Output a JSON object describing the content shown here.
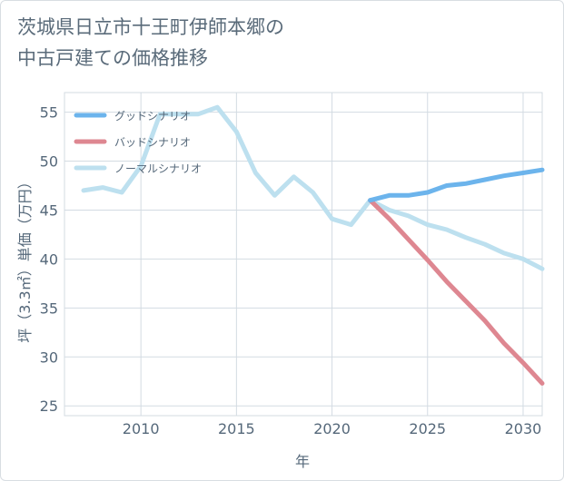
{
  "title_line1": "茨城県日立市十王町伊師本郷の",
  "title_line2": "中古戸建ての価格推移",
  "chart_data": {
    "type": "line",
    "title": "茨城県日立市十王町伊師本郷の中古戸建ての価格推移",
    "xlabel": "年",
    "ylabel": "坪（3.3㎡）単価（万円）",
    "xlim": [
      2006,
      2031
    ],
    "ylim": [
      24,
      57
    ],
    "xticks": [
      2010,
      2015,
      2020,
      2025,
      2030
    ],
    "yticks": [
      25,
      30,
      35,
      40,
      45,
      50,
      55
    ],
    "legend_position": "top-left",
    "series": [
      {
        "name": "グッドシナリオ",
        "color": "#6cb4ec",
        "x": [
          2022,
          2023,
          2024,
          2025,
          2026,
          2027,
          2028,
          2029,
          2030,
          2031
        ],
        "values": [
          46.0,
          46.5,
          46.5,
          46.8,
          47.5,
          47.7,
          48.1,
          48.5,
          48.8,
          49.1
        ]
      },
      {
        "name": "バッドシナリオ",
        "color": "#de8791",
        "x": [
          2022,
          2023,
          2024,
          2025,
          2026,
          2027,
          2028,
          2029,
          2030,
          2031
        ],
        "values": [
          46.0,
          44.1,
          42.0,
          39.9,
          37.7,
          35.7,
          33.7,
          31.4,
          29.4,
          27.3
        ]
      },
      {
        "name": "ノーマルシナリオ",
        "color": "#bde0ef",
        "x": [
          2007,
          2008,
          2009,
          2010,
          2011,
          2012,
          2013,
          2014,
          2015,
          2016,
          2017,
          2018,
          2019,
          2020,
          2021,
          2022,
          2023,
          2024,
          2025,
          2026,
          2027,
          2028,
          2029,
          2030,
          2031
        ],
        "values": [
          47.0,
          47.3,
          46.8,
          49.5,
          54.8,
          54.8,
          54.8,
          55.5,
          53.0,
          48.8,
          46.5,
          48.4,
          46.8,
          44.1,
          43.5,
          46.0,
          45.0,
          44.4,
          43.5,
          43.0,
          42.2,
          41.5,
          40.6,
          40.0,
          39.0
        ]
      }
    ]
  }
}
